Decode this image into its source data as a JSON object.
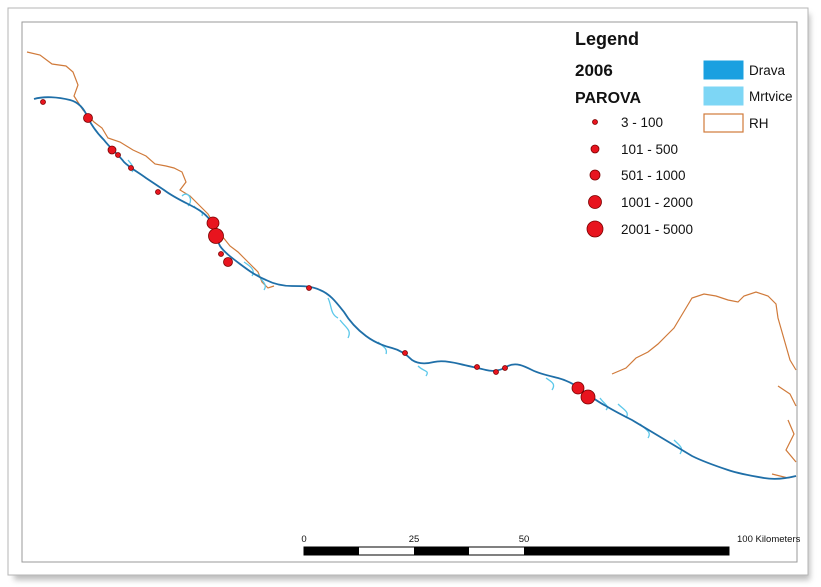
{
  "legend": {
    "title": "Legend",
    "year": "2006",
    "layer": "PAROVA",
    "classes": [
      "3 - 100",
      "101 - 500",
      "501 - 1000",
      "1001 - 2000",
      "2001 - 5000"
    ],
    "swatches": [
      {
        "label": "Drava",
        "color": "#1aa0e0"
      },
      {
        "label": "Mrtvice",
        "color": "#7dd6f5"
      },
      {
        "label": "RH",
        "color": "#d07a3a"
      }
    ]
  },
  "scale_bar": {
    "ticks": [
      "0",
      "25",
      "50"
    ],
    "end_label": "100 Kilometers"
  },
  "colors": {
    "river": "#1f6fa8",
    "oxbow": "#5cc8ea",
    "border": "#d07a3a",
    "symbol_fill": "#e8141e",
    "symbol_stroke": "#7a0000"
  }
}
